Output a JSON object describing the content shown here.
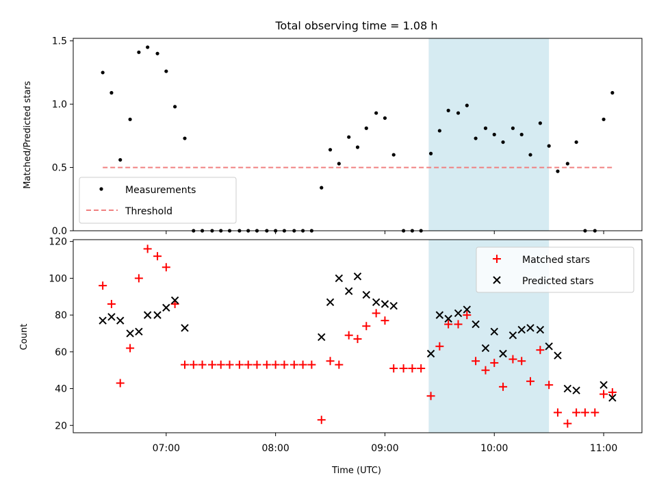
{
  "chart_data": {
    "title": "Total observing time = 1.08 h",
    "xlabel": "Time (UTC)",
    "xlim_hours": [
      6.15,
      11.35
    ],
    "xticks": [
      {
        "hour": 7,
        "label": "07:00"
      },
      {
        "hour": 8,
        "label": "08:00"
      },
      {
        "hour": 9,
        "label": "09:00"
      },
      {
        "hour": 10,
        "label": "10:00"
      },
      {
        "hour": 11,
        "label": "11:00"
      }
    ],
    "shaded_interval_hours": [
      9.4,
      10.5
    ],
    "shade_color": "#add8e6",
    "panels": [
      {
        "type": "scatter",
        "ylabel": "Matched/Predicted stars",
        "ylim": [
          0,
          1.52
        ],
        "yticks": [
          0.0,
          0.5,
          1.0,
          1.5
        ],
        "ytick_labels": [
          "0.0",
          "0.5",
          "1.0",
          "1.5"
        ],
        "legend": {
          "position": "lower-left",
          "entries": [
            "Measurements",
            "Threshold"
          ]
        },
        "threshold": {
          "value": 0.5,
          "x_start": 6.42,
          "x_end": 11.08,
          "color": "#f08080",
          "style": "dashed"
        },
        "series": [
          {
            "name": "Measurements",
            "marker": "dot",
            "color": "#000000",
            "x": [
              6.42,
              6.5,
              6.58,
              6.67,
              6.75,
              6.83,
              6.92,
              7.0,
              7.08,
              7.17,
              7.25,
              7.33,
              7.42,
              7.5,
              7.58,
              7.67,
              7.75,
              7.83,
              7.92,
              8.0,
              8.08,
              8.17,
              8.25,
              8.33,
              8.42,
              8.5,
              8.58,
              8.67,
              8.75,
              8.83,
              8.92,
              9.0,
              9.08,
              9.17,
              9.25,
              9.33,
              9.42,
              9.5,
              9.58,
              9.67,
              9.75,
              9.83,
              9.92,
              10.0,
              10.08,
              10.17,
              10.25,
              10.33,
              10.42,
              10.5,
              10.58,
              10.67,
              10.75,
              10.83,
              10.92,
              11.0,
              11.08
            ],
            "y": [
              1.25,
              1.09,
              0.56,
              0.88,
              1.41,
              1.45,
              1.4,
              1.26,
              0.98,
              0.73,
              0.0,
              0.0,
              0.0,
              0.0,
              0.0,
              0.0,
              0.0,
              0.0,
              0.0,
              0.0,
              0.0,
              0.0,
              0.0,
              0.0,
              0.34,
              0.64,
              0.53,
              0.74,
              0.66,
              0.81,
              0.93,
              0.89,
              0.6,
              0.0,
              0.0,
              0.0,
              0.61,
              0.79,
              0.95,
              0.93,
              0.99,
              0.73,
              0.81,
              0.76,
              0.7,
              0.81,
              0.76,
              0.6,
              0.85,
              0.67,
              0.47,
              0.53,
              0.7,
              0.0,
              0.0,
              0.88,
              1.09
            ]
          }
        ]
      },
      {
        "type": "scatter",
        "ylabel": "Count",
        "ylim": [
          16,
          121
        ],
        "yticks": [
          20,
          40,
          60,
          80,
          100,
          120
        ],
        "ytick_labels": [
          "20",
          "40",
          "60",
          "80",
          "100",
          "120"
        ],
        "legend": {
          "position": "top-right",
          "entries": [
            "Matched stars",
            "Predicted stars"
          ]
        },
        "series": [
          {
            "name": "Matched stars",
            "marker": "plus",
            "color": "#ff0000",
            "x": [
              6.42,
              6.5,
              6.58,
              6.67,
              6.75,
              6.83,
              6.92,
              7.0,
              7.08,
              7.17,
              7.25,
              7.33,
              7.42,
              7.5,
              7.58,
              7.67,
              7.75,
              7.83,
              7.92,
              8.0,
              8.08,
              8.17,
              8.25,
              8.33,
              8.42,
              8.5,
              8.58,
              8.67,
              8.75,
              8.83,
              8.92,
              9.0,
              9.08,
              9.17,
              9.25,
              9.33,
              9.42,
              9.5,
              9.58,
              9.67,
              9.75,
              9.83,
              9.92,
              10.0,
              10.08,
              10.17,
              10.25,
              10.33,
              10.42,
              10.5,
              10.58,
              10.67,
              10.75,
              10.83,
              10.92,
              11.0,
              11.08
            ],
            "y": [
              96,
              86,
              43,
              62,
              100,
              116,
              112,
              106,
              86,
              53,
              53,
              53,
              53,
              53,
              53,
              53,
              53,
              53,
              53,
              53,
              53,
              53,
              53,
              53,
              23,
              55,
              53,
              69,
              67,
              74,
              81,
              77,
              51,
              51,
              51,
              51,
              36,
              63,
              75,
              75,
              80,
              55,
              50,
              54,
              41,
              56,
              55,
              44,
              61,
              42,
              27,
              21,
              27,
              27,
              27,
              37,
              38
            ]
          },
          {
            "name": "Predicted stars",
            "marker": "x",
            "color": "#000000",
            "x": [
              6.42,
              6.5,
              6.58,
              6.67,
              6.75,
              6.83,
              6.92,
              7.0,
              7.08,
              7.17,
              8.42,
              8.5,
              8.58,
              8.67,
              8.75,
              8.83,
              8.92,
              9.0,
              9.08,
              9.42,
              9.5,
              9.58,
              9.67,
              9.75,
              9.83,
              9.92,
              10.0,
              10.08,
              10.17,
              10.25,
              10.33,
              10.42,
              10.5,
              10.58,
              10.67,
              10.75,
              11.0,
              11.08
            ],
            "y": [
              77,
              79,
              77,
              70,
              71,
              80,
              80,
              84,
              88,
              73,
              68,
              87,
              100,
              93,
              101,
              91,
              87,
              86,
              85,
              59,
              80,
              78,
              81,
              83,
              75,
              62,
              71,
              59,
              69,
              72,
              73,
              72,
              63,
              58,
              40,
              39,
              42,
              35
            ]
          }
        ]
      }
    ]
  }
}
